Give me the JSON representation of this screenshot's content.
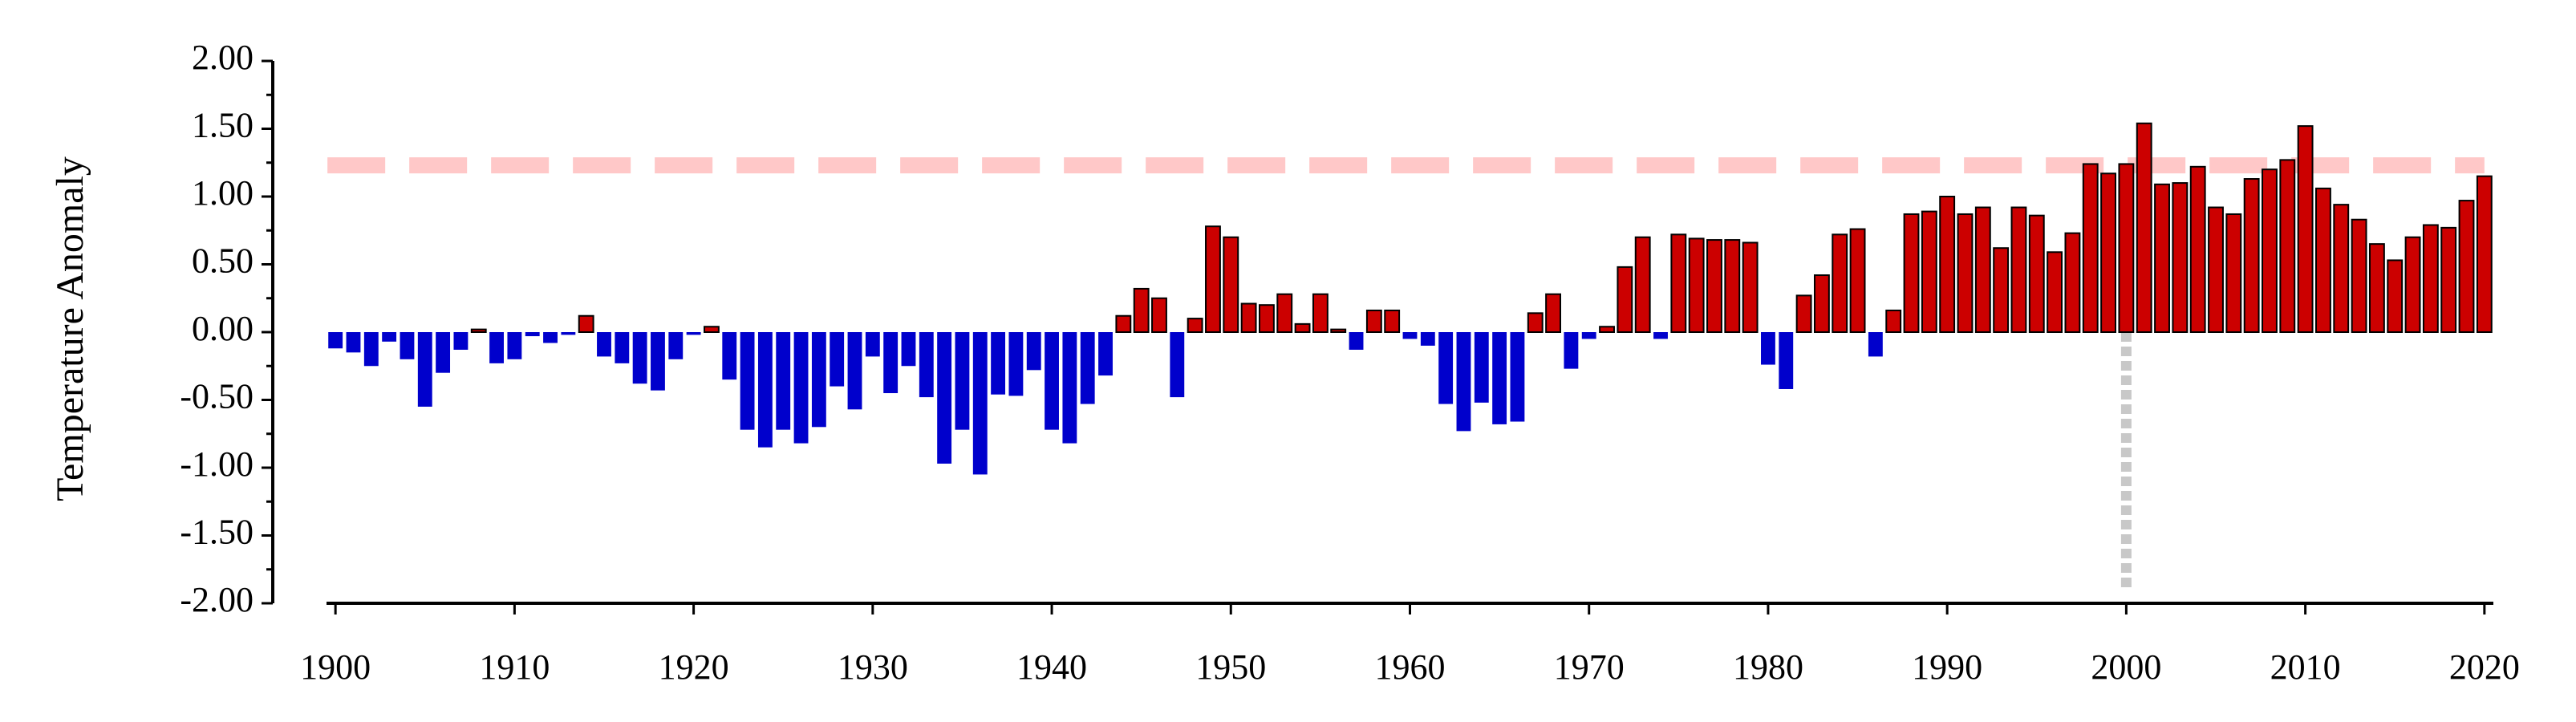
{
  "chart_data": {
    "type": "bar",
    "ylabel": "Temperature Anomaly",
    "x": [
      1900,
      1901,
      1902,
      1903,
      1904,
      1905,
      1906,
      1907,
      1908,
      1909,
      1910,
      1911,
      1912,
      1913,
      1914,
      1915,
      1916,
      1917,
      1918,
      1919,
      1920,
      1921,
      1922,
      1923,
      1924,
      1925,
      1926,
      1927,
      1928,
      1929,
      1930,
      1931,
      1932,
      1933,
      1934,
      1935,
      1936,
      1937,
      1938,
      1939,
      1940,
      1941,
      1942,
      1943,
      1944,
      1945,
      1946,
      1947,
      1948,
      1949,
      1950,
      1951,
      1952,
      1953,
      1954,
      1955,
      1956,
      1957,
      1958,
      1959,
      1960,
      1961,
      1962,
      1963,
      1964,
      1965,
      1966,
      1967,
      1968,
      1969,
      1970,
      1971,
      1972,
      1973,
      1974,
      1975,
      1976,
      1977,
      1978,
      1979,
      1980,
      1981,
      1982,
      1983,
      1984,
      1985,
      1986,
      1987,
      1988,
      1989,
      1990,
      1991,
      1992,
      1993,
      1994,
      1995,
      1996,
      1997,
      1998,
      1999,
      2000,
      2001,
      2002,
      2003,
      2004,
      2005,
      2006,
      2007,
      2008,
      2009,
      2010,
      2011,
      2012,
      2013,
      2014,
      2015,
      2016,
      2017,
      2018,
      2019,
      2020
    ],
    "values": [
      -0.12,
      -0.15,
      -0.25,
      -0.07,
      -0.2,
      -0.55,
      -0.3,
      -0.13,
      0.02,
      -0.23,
      -0.2,
      -0.03,
      -0.08,
      -0.02,
      0.12,
      -0.18,
      -0.23,
      -0.38,
      -0.43,
      -0.2,
      -0.02,
      0.04,
      -0.35,
      -0.72,
      -0.85,
      -0.72,
      -0.82,
      -0.7,
      -0.4,
      -0.57,
      -0.18,
      -0.45,
      -0.25,
      -0.48,
      -0.97,
      -0.72,
      -1.05,
      -0.46,
      -0.47,
      -0.28,
      -0.72,
      -0.82,
      -0.53,
      -0.32,
      0.12,
      0.32,
      0.25,
      -0.48,
      0.1,
      0.78,
      0.7,
      0.21,
      0.2,
      0.28,
      0.06,
      0.28,
      0.02,
      -0.13,
      0.16,
      0.16,
      -0.05,
      -0.1,
      -0.53,
      -0.73,
      -0.52,
      -0.68,
      -0.66,
      0.14,
      0.28,
      -0.27,
      -0.05,
      0.04,
      0.48,
      0.7,
      -0.05,
      0.72,
      0.69,
      0.68,
      0.68,
      0.66,
      -0.24,
      -0.42,
      0.27,
      0.42,
      0.72,
      0.76,
      -0.18,
      0.16,
      0.87,
      0.89,
      1.0,
      0.87,
      0.92,
      0.62,
      0.92,
      0.86,
      0.59,
      0.73,
      1.24,
      1.17,
      1.24,
      1.54,
      1.09,
      1.1,
      1.22,
      0.92,
      0.87,
      1.13,
      1.2,
      1.27,
      1.52,
      1.06,
      0.94,
      0.83,
      0.65,
      0.53,
      0.7,
      0.79,
      0.77,
      0.97,
      1.15
    ],
    "positive_color": "#cc0000",
    "negative_color": "#0000cc",
    "xlim": [
      1899.5,
      2020.5
    ],
    "xticks": [
      1900,
      1910,
      1920,
      1930,
      1940,
      1950,
      1960,
      1970,
      1980,
      1990,
      2000,
      2010,
      2020
    ],
    "ylim": [
      -2,
      2
    ],
    "yticks": [
      {
        "value": -2,
        "label": "-2.00"
      },
      {
        "value": -1.5,
        "label": "-1.50"
      },
      {
        "value": -1,
        "label": "-1.00"
      },
      {
        "value": -0.5,
        "label": "-0.50"
      },
      {
        "value": 0,
        "label": "0.00"
      },
      {
        "value": 0.5,
        "label": "0.50"
      },
      {
        "value": 1,
        "label": "1.00"
      },
      {
        "value": 1.5,
        "label": "1.50"
      },
      {
        "value": 2,
        "label": "2.00"
      }
    ],
    "reference_line": {
      "y": 1.23,
      "color": "#ffc8c8"
    },
    "marker_line": {
      "x": 2000,
      "color": "#c8c8c8"
    }
  }
}
